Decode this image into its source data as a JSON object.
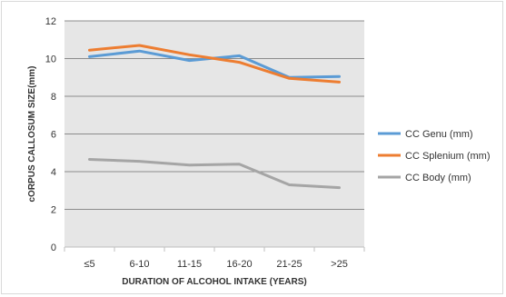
{
  "chart_data": {
    "type": "line",
    "categories": [
      "≤5",
      "6-10",
      "11-15",
      "16-20",
      "21-25",
      ">25"
    ],
    "series": [
      {
        "name": "CC Genu (mm)",
        "color": "#5b9bd5",
        "values": [
          10.1,
          10.4,
          9.9,
          10.15,
          9.0,
          9.05
        ]
      },
      {
        "name": "CC Splenium (mm)",
        "color": "#ed7d31",
        "values": [
          10.45,
          10.7,
          10.2,
          9.8,
          8.95,
          8.75
        ]
      },
      {
        "name": "CC Body (mm)",
        "color": "#a5a5a5",
        "values": [
          4.65,
          4.55,
          4.35,
          4.4,
          3.3,
          3.15
        ]
      }
    ],
    "xlabel": "DURATION  OF ALCOHOL INTAKE (YEARS)",
    "ylabel": "cORPUS  CALLOSUM SIZE(mm)",
    "ylim": [
      0,
      12
    ],
    "yticks": [
      0,
      2,
      4,
      6,
      8,
      10,
      12
    ],
    "grid": true,
    "plot_background": "#e6e6e6",
    "legend_position": "right"
  }
}
